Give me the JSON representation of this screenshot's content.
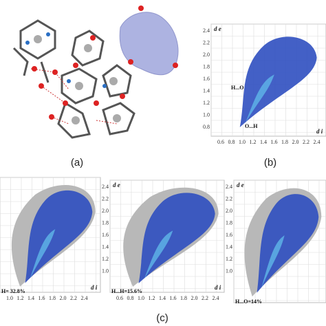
{
  "panel_a": {
    "label": "(a)"
  },
  "panel_b": {
    "label": "(b)",
    "y_axis": "d e",
    "x_axis": "d i",
    "yticks": [
      "2.4",
      "2.2",
      "2.0",
      "1.8",
      "1.6",
      "1.4",
      "1.2",
      "1.0",
      "0.8"
    ],
    "xticks": [
      "0.6",
      "0.8",
      "1.0",
      "1.2",
      "1.4",
      "1.6",
      "1.8",
      "2.0",
      "2.2",
      "2.4"
    ],
    "annotations": [
      "H...O",
      "O...H"
    ]
  },
  "panel_c": {
    "label": "(c)",
    "plots": [
      {
        "y_axis": "",
        "x_axis": "d i",
        "yticks": [],
        "xticks": [
          "1.0",
          "1.2",
          "1.4",
          "1.6",
          "1.8",
          "2.0",
          "2.2",
          "2.4"
        ],
        "annotation": "H= 32.8%"
      },
      {
        "y_axis": "d e",
        "x_axis": "d i",
        "yticks": [
          "2.4",
          "2.2",
          "2.0",
          "1.8",
          "1.6",
          "1.4",
          "1.2",
          "1.0"
        ],
        "xticks": [
          "0.6",
          "0.8",
          "1.0",
          "1.2",
          "1.4",
          "1.6",
          "1.8",
          "2.0",
          "2.2",
          "2.4"
        ],
        "annotation": "H...H=15.6%"
      },
      {
        "y_axis": "d e",
        "x_axis": "",
        "yticks": [
          "2.4",
          "2.2",
          "2.0",
          "1.8",
          "1.6",
          "1.4",
          "1.2",
          "1.0"
        ],
        "xticks": [],
        "annotation": "H...O=14%"
      }
    ]
  }
}
